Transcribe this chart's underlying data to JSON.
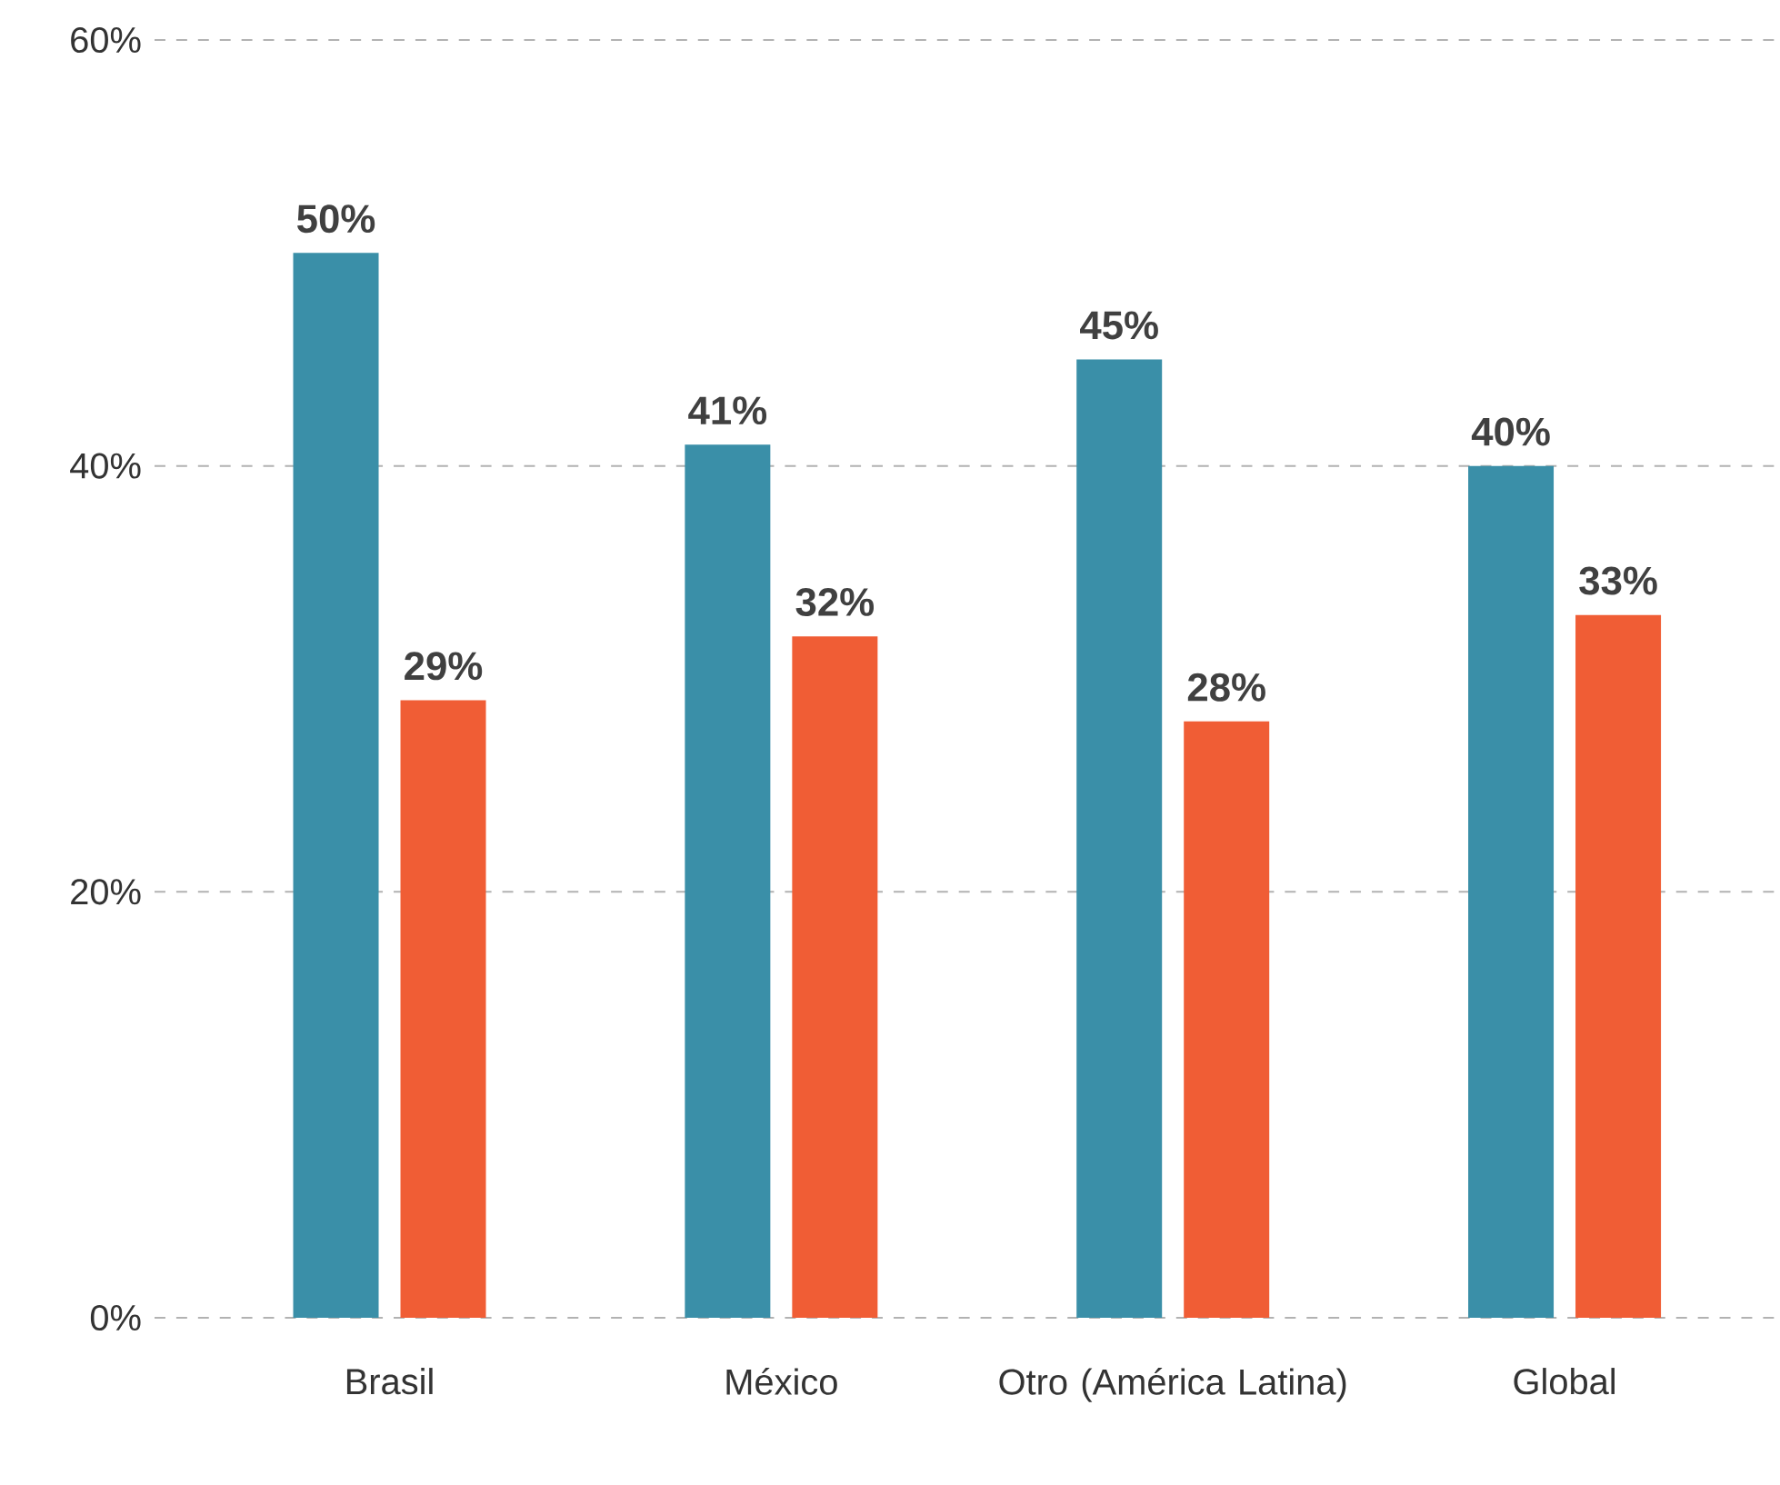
{
  "chart_data": {
    "type": "bar",
    "categories": [
      "Brasil",
      "México",
      "Otro (América Latina)",
      "Global"
    ],
    "series": [
      {
        "color": "#3a8fa8",
        "values": [
          50,
          41,
          45,
          40
        ],
        "value_labels": [
          "50%",
          "41%",
          "45%",
          "40%"
        ]
      },
      {
        "color": "#f05d35",
        "values": [
          29,
          32,
          28,
          33
        ],
        "value_labels": [
          "29%",
          "32%",
          "28%",
          "33%"
        ]
      }
    ],
    "ylim": [
      0,
      60
    ],
    "yticks": [
      {
        "value": 0,
        "label": "0%"
      },
      {
        "value": 20,
        "label": "20%"
      },
      {
        "value": 40,
        "label": "40%"
      },
      {
        "value": 60,
        "label": "60%"
      }
    ],
    "grid": "y"
  }
}
